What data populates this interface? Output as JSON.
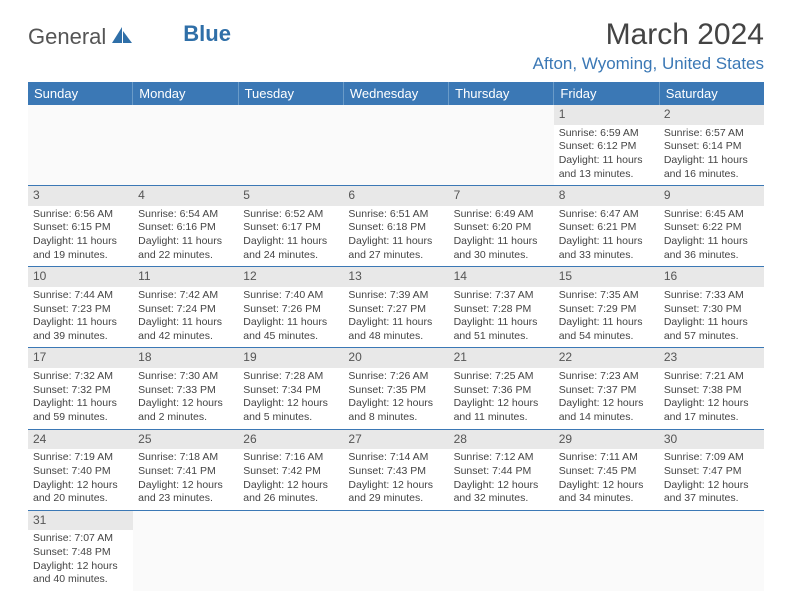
{
  "logo": {
    "word1": "General",
    "word2": "Blue"
  },
  "title": "March 2024",
  "location": "Afton, Wyoming, United States",
  "colors": {
    "header_bg": "#3b78b5",
    "header_text": "#ffffff",
    "day_num_bg": "#e8e8e8",
    "row_border": "#3b78b5",
    "location_color": "#3b78b5"
  },
  "day_headers": [
    "Sunday",
    "Monday",
    "Tuesday",
    "Wednesday",
    "Thursday",
    "Friday",
    "Saturday"
  ],
  "weeks": [
    [
      {
        "n": "",
        "sr": "",
        "ss": "",
        "d1": "",
        "d2": ""
      },
      {
        "n": "",
        "sr": "",
        "ss": "",
        "d1": "",
        "d2": ""
      },
      {
        "n": "",
        "sr": "",
        "ss": "",
        "d1": "",
        "d2": ""
      },
      {
        "n": "",
        "sr": "",
        "ss": "",
        "d1": "",
        "d2": ""
      },
      {
        "n": "",
        "sr": "",
        "ss": "",
        "d1": "",
        "d2": ""
      },
      {
        "n": "1",
        "sr": "Sunrise: 6:59 AM",
        "ss": "Sunset: 6:12 PM",
        "d1": "Daylight: 11 hours",
        "d2": "and 13 minutes."
      },
      {
        "n": "2",
        "sr": "Sunrise: 6:57 AM",
        "ss": "Sunset: 6:14 PM",
        "d1": "Daylight: 11 hours",
        "d2": "and 16 minutes."
      }
    ],
    [
      {
        "n": "3",
        "sr": "Sunrise: 6:56 AM",
        "ss": "Sunset: 6:15 PM",
        "d1": "Daylight: 11 hours",
        "d2": "and 19 minutes."
      },
      {
        "n": "4",
        "sr": "Sunrise: 6:54 AM",
        "ss": "Sunset: 6:16 PM",
        "d1": "Daylight: 11 hours",
        "d2": "and 22 minutes."
      },
      {
        "n": "5",
        "sr": "Sunrise: 6:52 AM",
        "ss": "Sunset: 6:17 PM",
        "d1": "Daylight: 11 hours",
        "d2": "and 24 minutes."
      },
      {
        "n": "6",
        "sr": "Sunrise: 6:51 AM",
        "ss": "Sunset: 6:18 PM",
        "d1": "Daylight: 11 hours",
        "d2": "and 27 minutes."
      },
      {
        "n": "7",
        "sr": "Sunrise: 6:49 AM",
        "ss": "Sunset: 6:20 PM",
        "d1": "Daylight: 11 hours",
        "d2": "and 30 minutes."
      },
      {
        "n": "8",
        "sr": "Sunrise: 6:47 AM",
        "ss": "Sunset: 6:21 PM",
        "d1": "Daylight: 11 hours",
        "d2": "and 33 minutes."
      },
      {
        "n": "9",
        "sr": "Sunrise: 6:45 AM",
        "ss": "Sunset: 6:22 PM",
        "d1": "Daylight: 11 hours",
        "d2": "and 36 minutes."
      }
    ],
    [
      {
        "n": "10",
        "sr": "Sunrise: 7:44 AM",
        "ss": "Sunset: 7:23 PM",
        "d1": "Daylight: 11 hours",
        "d2": "and 39 minutes."
      },
      {
        "n": "11",
        "sr": "Sunrise: 7:42 AM",
        "ss": "Sunset: 7:24 PM",
        "d1": "Daylight: 11 hours",
        "d2": "and 42 minutes."
      },
      {
        "n": "12",
        "sr": "Sunrise: 7:40 AM",
        "ss": "Sunset: 7:26 PM",
        "d1": "Daylight: 11 hours",
        "d2": "and 45 minutes."
      },
      {
        "n": "13",
        "sr": "Sunrise: 7:39 AM",
        "ss": "Sunset: 7:27 PM",
        "d1": "Daylight: 11 hours",
        "d2": "and 48 minutes."
      },
      {
        "n": "14",
        "sr": "Sunrise: 7:37 AM",
        "ss": "Sunset: 7:28 PM",
        "d1": "Daylight: 11 hours",
        "d2": "and 51 minutes."
      },
      {
        "n": "15",
        "sr": "Sunrise: 7:35 AM",
        "ss": "Sunset: 7:29 PM",
        "d1": "Daylight: 11 hours",
        "d2": "and 54 minutes."
      },
      {
        "n": "16",
        "sr": "Sunrise: 7:33 AM",
        "ss": "Sunset: 7:30 PM",
        "d1": "Daylight: 11 hours",
        "d2": "and 57 minutes."
      }
    ],
    [
      {
        "n": "17",
        "sr": "Sunrise: 7:32 AM",
        "ss": "Sunset: 7:32 PM",
        "d1": "Daylight: 11 hours",
        "d2": "and 59 minutes."
      },
      {
        "n": "18",
        "sr": "Sunrise: 7:30 AM",
        "ss": "Sunset: 7:33 PM",
        "d1": "Daylight: 12 hours",
        "d2": "and 2 minutes."
      },
      {
        "n": "19",
        "sr": "Sunrise: 7:28 AM",
        "ss": "Sunset: 7:34 PM",
        "d1": "Daylight: 12 hours",
        "d2": "and 5 minutes."
      },
      {
        "n": "20",
        "sr": "Sunrise: 7:26 AM",
        "ss": "Sunset: 7:35 PM",
        "d1": "Daylight: 12 hours",
        "d2": "and 8 minutes."
      },
      {
        "n": "21",
        "sr": "Sunrise: 7:25 AM",
        "ss": "Sunset: 7:36 PM",
        "d1": "Daylight: 12 hours",
        "d2": "and 11 minutes."
      },
      {
        "n": "22",
        "sr": "Sunrise: 7:23 AM",
        "ss": "Sunset: 7:37 PM",
        "d1": "Daylight: 12 hours",
        "d2": "and 14 minutes."
      },
      {
        "n": "23",
        "sr": "Sunrise: 7:21 AM",
        "ss": "Sunset: 7:38 PM",
        "d1": "Daylight: 12 hours",
        "d2": "and 17 minutes."
      }
    ],
    [
      {
        "n": "24",
        "sr": "Sunrise: 7:19 AM",
        "ss": "Sunset: 7:40 PM",
        "d1": "Daylight: 12 hours",
        "d2": "and 20 minutes."
      },
      {
        "n": "25",
        "sr": "Sunrise: 7:18 AM",
        "ss": "Sunset: 7:41 PM",
        "d1": "Daylight: 12 hours",
        "d2": "and 23 minutes."
      },
      {
        "n": "26",
        "sr": "Sunrise: 7:16 AM",
        "ss": "Sunset: 7:42 PM",
        "d1": "Daylight: 12 hours",
        "d2": "and 26 minutes."
      },
      {
        "n": "27",
        "sr": "Sunrise: 7:14 AM",
        "ss": "Sunset: 7:43 PM",
        "d1": "Daylight: 12 hours",
        "d2": "and 29 minutes."
      },
      {
        "n": "28",
        "sr": "Sunrise: 7:12 AM",
        "ss": "Sunset: 7:44 PM",
        "d1": "Daylight: 12 hours",
        "d2": "and 32 minutes."
      },
      {
        "n": "29",
        "sr": "Sunrise: 7:11 AM",
        "ss": "Sunset: 7:45 PM",
        "d1": "Daylight: 12 hours",
        "d2": "and 34 minutes."
      },
      {
        "n": "30",
        "sr": "Sunrise: 7:09 AM",
        "ss": "Sunset: 7:47 PM",
        "d1": "Daylight: 12 hours",
        "d2": "and 37 minutes."
      }
    ],
    [
      {
        "n": "31",
        "sr": "Sunrise: 7:07 AM",
        "ss": "Sunset: 7:48 PM",
        "d1": "Daylight: 12 hours",
        "d2": "and 40 minutes."
      },
      {
        "n": "",
        "sr": "",
        "ss": "",
        "d1": "",
        "d2": ""
      },
      {
        "n": "",
        "sr": "",
        "ss": "",
        "d1": "",
        "d2": ""
      },
      {
        "n": "",
        "sr": "",
        "ss": "",
        "d1": "",
        "d2": ""
      },
      {
        "n": "",
        "sr": "",
        "ss": "",
        "d1": "",
        "d2": ""
      },
      {
        "n": "",
        "sr": "",
        "ss": "",
        "d1": "",
        "d2": ""
      },
      {
        "n": "",
        "sr": "",
        "ss": "",
        "d1": "",
        "d2": ""
      }
    ]
  ]
}
